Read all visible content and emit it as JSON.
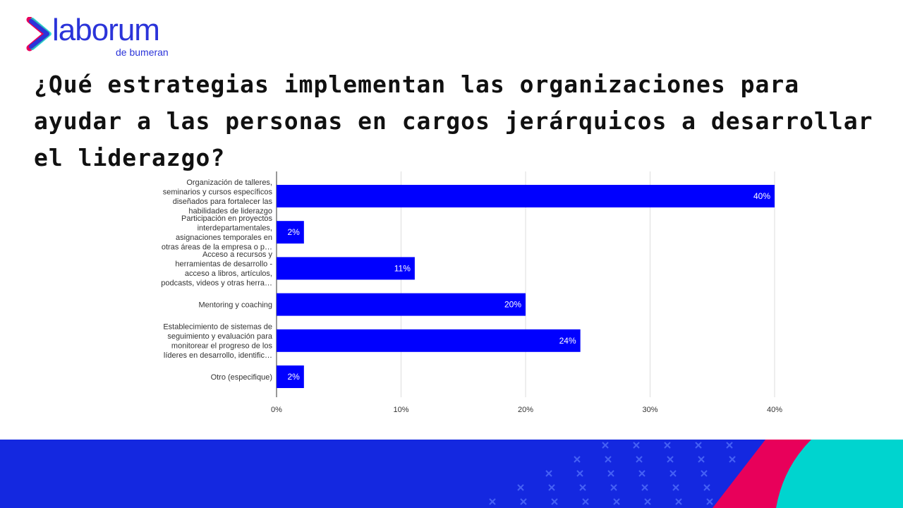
{
  "logo": {
    "name": "laborum",
    "sub": "de bumeran"
  },
  "title": "¿Qué estrategias implementan las organizaciones para ayudar a las personas en cargos jerárquicos a desarrollar el liderazgo?",
  "colors": {
    "bar": "#0000ff",
    "brand_blue": "#1428e0",
    "pink": "#e8005a",
    "teal": "#00d4cf"
  },
  "chart_data": {
    "type": "bar",
    "orientation": "horizontal",
    "categories": [
      [
        "Organización de talleres,",
        "seminarios y cursos específicos",
        "diseñados para fortalecer las",
        "habilidades de liderazgo"
      ],
      [
        "Participación en proyectos",
        "interdepartamentales,",
        "asignaciones temporales en",
        "otras áreas de la empresa o p…"
      ],
      [
        "Acceso a recursos y",
        "herramientas de desarrollo -",
        "acceso a libros, artículos,",
        "podcasts, videos y otras herra…"
      ],
      [
        "Mentoring y coaching"
      ],
      [
        "Establecimiento de sistemas de",
        "seguimiento y evaluación para",
        "monitorear el progreso de los",
        "líderes en desarrollo, identific…"
      ],
      [
        "Otro (especifique)"
      ]
    ],
    "values": [
      40,
      2.2,
      11.1,
      20,
      24.4,
      2.2
    ],
    "labels": [
      "40%",
      "2%",
      "11%",
      "20%",
      "24%",
      "2%"
    ],
    "xticks": [
      0,
      10,
      20,
      30,
      40
    ],
    "xtick_labels": [
      "0%",
      "10%",
      "20%",
      "30%",
      "40%"
    ],
    "xlim": [
      0,
      40
    ],
    "grid": true
  }
}
